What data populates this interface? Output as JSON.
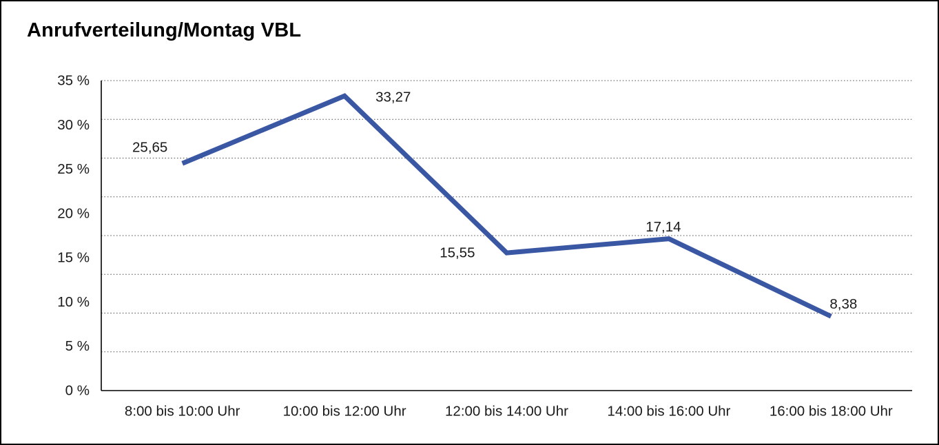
{
  "header": {
    "title": "Anrufverteilung/Montag VBL"
  },
  "chart_data": {
    "type": "line",
    "title": "Anrufverteilung/Montag VBL",
    "categories": [
      "8:00 bis 10:00 Uhr",
      "10:00 bis 12:00 Uhr",
      "12:00 bis 14:00 Uhr",
      "14:00 bis 16:00 Uhr",
      "16:00 bis 18:00 Uhr"
    ],
    "values": [
      25.65,
      33.27,
      15.55,
      17.14,
      8.38
    ],
    "value_labels": [
      "25,65",
      "33,27",
      "15,55",
      "17,14",
      "8,38"
    ],
    "y_ticks": [
      "35 %",
      "30 %",
      "25 %",
      "20 %",
      "15 %",
      "10 %",
      "5 %",
      "0 %"
    ],
    "y_tick_values": [
      35,
      30,
      25,
      20,
      15,
      10,
      5,
      0
    ],
    "ylim": [
      0,
      35
    ],
    "xlabel": "",
    "ylabel": "",
    "legend": "none",
    "grid": "horizontal-dotted",
    "line_color": "#3A57A4",
    "axis_color": "#000000",
    "grid_color": "#555555",
    "text_color": "#1a1a1a"
  }
}
